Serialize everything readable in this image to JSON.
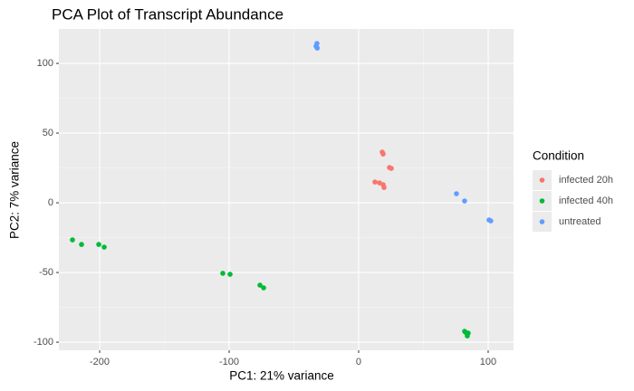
{
  "chart_data": {
    "type": "scatter",
    "title": "PCA Plot of Transcript Abundance",
    "x_label": "PC1: 21% variance",
    "y_label": "PC2: 7% variance",
    "legend_title": "Condition",
    "legend_position": "right",
    "grid": true,
    "xlim": [
      -231.5,
      119.6
    ],
    "ylim": [
      -105.8,
      124.7
    ],
    "xticks": [
      -200,
      -100,
      0,
      100
    ],
    "yticks": [
      -100,
      -50,
      0,
      50,
      100
    ],
    "series": [
      {
        "name": "infected 20h",
        "color": "#f8766d",
        "x": [
          18.2,
          18.9,
          23.8,
          25.2,
          12.6,
          16.1,
          18.9,
          19.6
        ],
        "y": [
          36.4,
          35,
          25.3,
          24.7,
          14.9,
          14.3,
          13,
          11
        ]
      },
      {
        "name": "infected 40h",
        "color": "#00ba38",
        "x": [
          -221,
          -214,
          -200.7,
          -196.5,
          -104.9,
          -99.3,
          -76.2,
          -73.4,
          81.8,
          84.6,
          83.9,
          82.5
        ],
        "y": [
          -26.6,
          -29.9,
          -29.9,
          -31.8,
          -50.6,
          -51.3,
          -59.1,
          -61,
          -92.2,
          -93.5,
          -95.5,
          -92.9
        ]
      },
      {
        "name": "untreated",
        "color": "#619cff",
        "x": [
          -32.2,
          -32.9,
          -32,
          75.5,
          81.8,
          100.7,
          102
        ],
        "y": [
          114.3,
          112.3,
          111,
          6.5,
          1.3,
          -12.3,
          -13
        ]
      }
    ]
  }
}
